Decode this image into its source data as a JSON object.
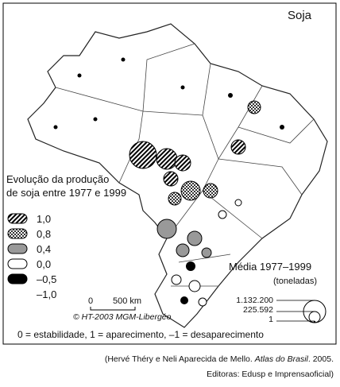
{
  "map": {
    "title": "Soja",
    "legend_title": [
      "Evolução da produção",
      "de soja entre 1977 e 1999"
    ],
    "legend_items": [
      "1,0",
      "0,8",
      "0,4",
      "0,0",
      "–0,5",
      "–1,0"
    ],
    "scale": [
      "0",
      "500 km"
    ],
    "credit": "© HT-2003 MGM-Libergéo",
    "size_legend": {
      "title": "Média 1977–1999",
      "unit": "(toneladas)",
      "values": [
        "1.132.200",
        "225.592",
        "1"
      ]
    },
    "note": "0 = estabilidade, 1 = aparecimento, –1 = desaparecimento"
  },
  "source": {
    "line1": [
      "(Hervé Théry e Neli Aparecida de Mello. ",
      "Atlas do Brasil",
      ". 2005."
    ],
    "line2": "Editoras: Edusp e Imprensaoficial)"
  }
}
